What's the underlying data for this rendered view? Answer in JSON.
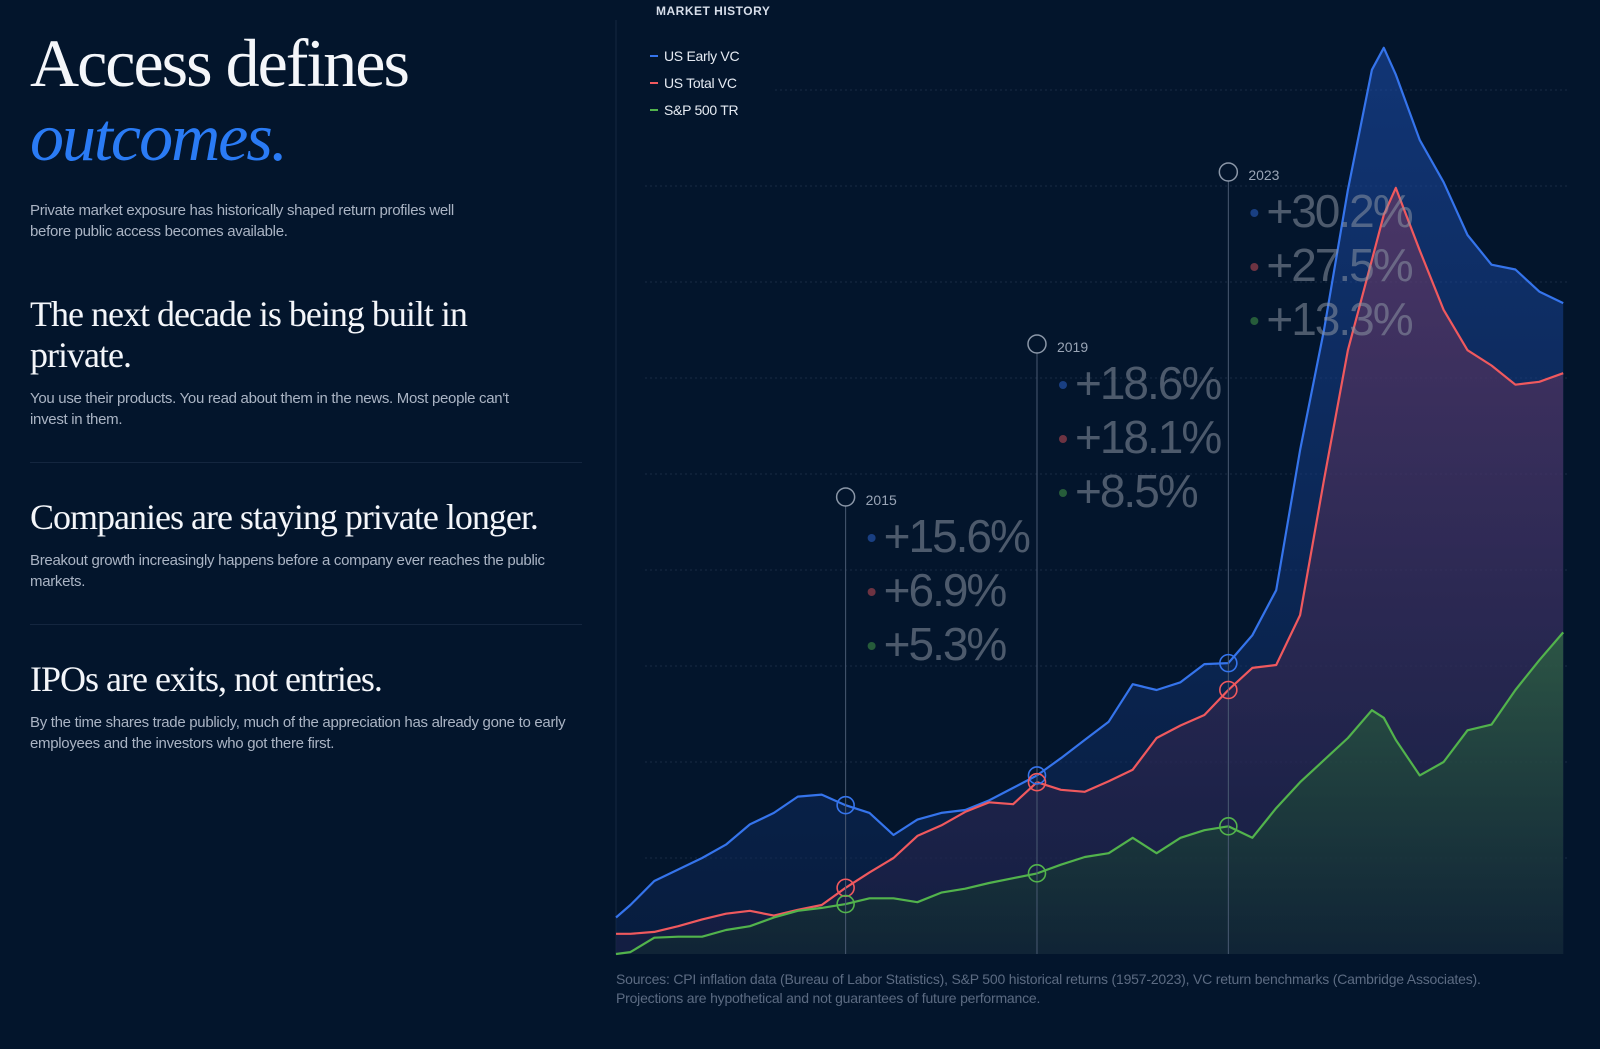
{
  "header": {
    "title_line1": "Access defines",
    "title_line2": "outcomes.",
    "intro": "Private market exposure has historically shaped return profiles well before public access becomes available."
  },
  "sections": [
    {
      "heading": "The next decade is being built in private.",
      "body": "You use their products. You read about them in the news. Most people can't invest in them."
    },
    {
      "heading": "Companies are staying private longer.",
      "body": "Breakout growth increasingly happens before a company ever reaches the public markets."
    },
    {
      "heading": "IPOs are exits, not entries.",
      "body": "By the time shares trade publicly, much of the appreciation has already gone to early employees and the investors who got there first."
    }
  ],
  "chart_data": {
    "type": "area",
    "title": "MARKET HISTORY",
    "x": [
      2010.2,
      2010.5,
      2011,
      2011.5,
      2012,
      2012.5,
      2013,
      2013.5,
      2014,
      2014.5,
      2015,
      2015.5,
      2016,
      2016.5,
      2017,
      2017.5,
      2018,
      2018.5,
      2019,
      2019.5,
      2020,
      2020.5,
      2021,
      2021.5,
      2022,
      2022.5,
      2023,
      2023.5,
      2024,
      2024.5,
      2025,
      2025.5,
      2026,
      2026.25,
      2026.5,
      2027,
      2027.5,
      2028,
      2028.5,
      2029,
      2029.5,
      2030
    ],
    "xlim": [
      2010.2,
      2030.1
    ],
    "ylim": [
      0,
      9.5
    ],
    "yticks": [
      1,
      2,
      3,
      4,
      5,
      6,
      7,
      8,
      9
    ],
    "grid": true,
    "series": [
      {
        "name": "US Early VC",
        "color": "#3574ec",
        "values": [
          0.38,
          0.51,
          0.76,
          0.88,
          1.0,
          1.14,
          1.35,
          1.47,
          1.64,
          1.66,
          1.55,
          1.47,
          1.24,
          1.4,
          1.47,
          1.5,
          1.6,
          1.73,
          1.86,
          2.04,
          2.23,
          2.42,
          2.81,
          2.75,
          2.83,
          3.02,
          3.03,
          3.32,
          3.79,
          5.25,
          6.5,
          7.96,
          9.21,
          9.44,
          9.16,
          8.48,
          8.04,
          7.49,
          7.18,
          7.13,
          6.9,
          6.78
        ]
      },
      {
        "name": "US Total VC",
        "color": "#f0595e",
        "values": [
          0.21,
          0.21,
          0.23,
          0.29,
          0.36,
          0.42,
          0.45,
          0.4,
          0.46,
          0.51,
          0.69,
          0.85,
          1.0,
          1.23,
          1.34,
          1.48,
          1.58,
          1.56,
          1.79,
          1.71,
          1.69,
          1.8,
          1.92,
          2.25,
          2.38,
          2.49,
          2.75,
          2.98,
          3.01,
          3.53,
          4.94,
          6.29,
          7.23,
          7.7,
          7.98,
          7.33,
          6.71,
          6.29,
          6.13,
          5.93,
          5.96,
          6.05
        ]
      },
      {
        "name": "S&P 500 TR",
        "color": "#52b34c",
        "values": [
          0,
          0.02,
          0.17,
          0.18,
          0.18,
          0.25,
          0.29,
          0.38,
          0.45,
          0.48,
          0.52,
          0.58,
          0.58,
          0.54,
          0.64,
          0.68,
          0.74,
          0.79,
          0.84,
          0.93,
          1.01,
          1.05,
          1.21,
          1.05,
          1.21,
          1.29,
          1.33,
          1.21,
          1.52,
          1.79,
          2.02,
          2.25,
          2.54,
          2.46,
          2.23,
          1.86,
          2.0,
          2.33,
          2.39,
          2.75,
          3.06,
          3.35
        ]
      }
    ],
    "annotations": [
      {
        "label": "2015",
        "x": 2015,
        "texts": [
          "+15.6%",
          "+6.9%",
          "+5.3%"
        ]
      },
      {
        "label": "2019",
        "x": 2019,
        "texts": [
          "+18.6%",
          "+18.1%",
          "+8.5%"
        ]
      },
      {
        "label": "2023",
        "x": 2023,
        "texts": [
          "+30.2%",
          "+27.5%",
          "+13.3%"
        ]
      }
    ],
    "source_line1": "Sources: CPI inflation data (Bureau of Labor Statistics), S&P 500 historical returns (1957-2023), VC return benchmarks (Cambridge Associates).",
    "source_line2": "Projections are hypothetical and not guarantees of future performance."
  }
}
